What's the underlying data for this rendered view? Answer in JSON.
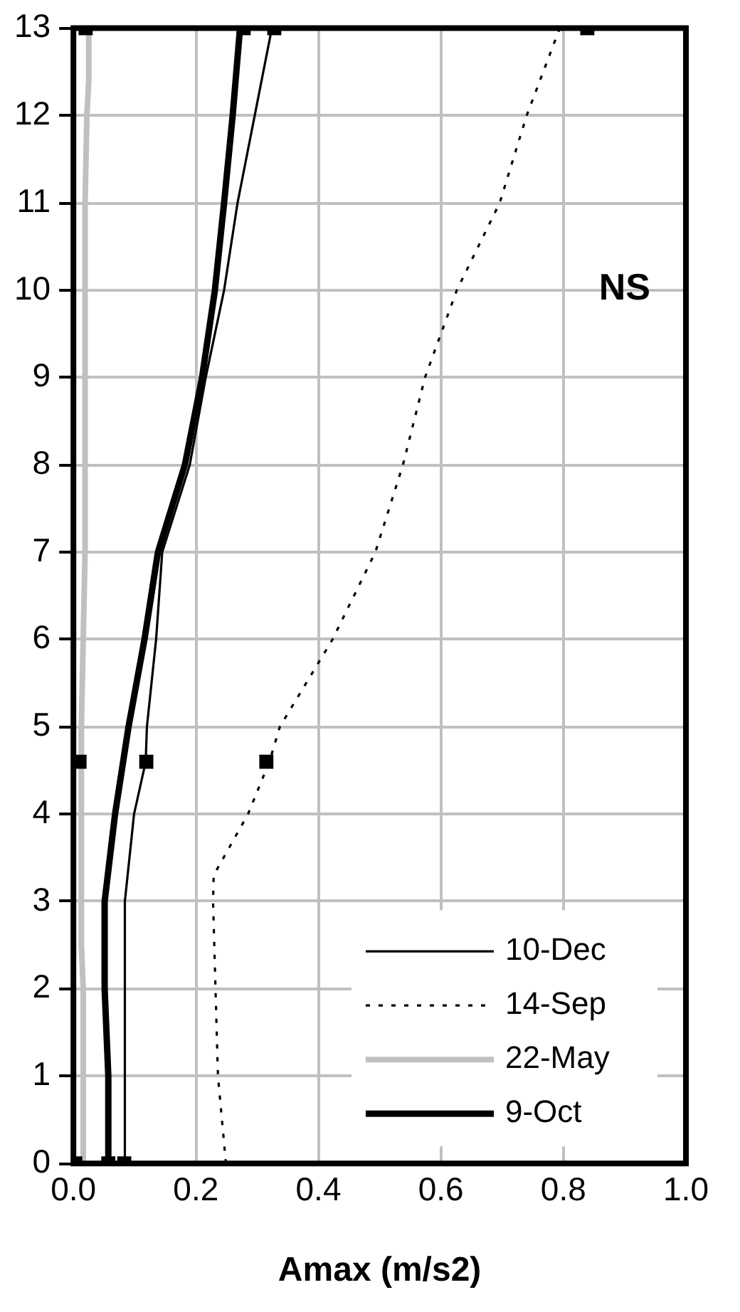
{
  "chart_data": {
    "type": "line",
    "xlabel": "Amax (m/s2)",
    "xlim": [
      0,
      1
    ],
    "xticks": [
      {
        "value": 0,
        "label": "0.0"
      },
      0.2,
      0.4,
      0.6,
      0.8,
      {
        "value": 1,
        "label": "1.0"
      }
    ],
    "ylim": [
      0,
      13
    ],
    "yticks": [
      0,
      1,
      2,
      3,
      4,
      5,
      6,
      7,
      8,
      9,
      10,
      11,
      12,
      13
    ],
    "grid": true,
    "legend": "bottom right",
    "marker": "none",
    "annotations": [
      "NS"
    ],
    "series": [
      {
        "name": "10-Dec",
        "color": "#000000",
        "line_style": "solid",
        "x": [
          0.084,
          0.084,
          0.099,
          0.118,
          0.12,
          0.135,
          0.145,
          0.19,
          0.216,
          0.246,
          0.268,
          0.296,
          0.324
        ],
        "values": [
          0,
          3,
          4,
          4.6,
          5,
          6,
          7,
          8,
          9,
          10,
          11,
          12,
          13
        ]
      },
      {
        "name": "14-Sep",
        "color": "#000000",
        "line_style": "dotted",
        "x": [
          0.249,
          0.236,
          0.232,
          0.228,
          0.229,
          0.285,
          0.32,
          0.337,
          0.423,
          0.493,
          0.538,
          0.574,
          0.626,
          0.696,
          0.74,
          0.794
        ],
        "values": [
          0,
          1,
          2,
          3,
          3.3,
          4,
          4.6,
          5,
          6,
          7,
          8,
          9,
          10,
          11,
          12,
          13
        ]
      },
      {
        "name": "22-May",
        "color": "#c0c0c0",
        "line_style": "solid",
        "x": [
          0.016,
          0.016,
          0.013,
          0.013,
          0.016,
          0.019,
          0.019,
          0.022,
          0.025,
          0.025
        ],
        "values": [
          0,
          2,
          2.5,
          5,
          6,
          7,
          11,
          12,
          12.4,
          13
        ]
      },
      {
        "name": "9-Oct",
        "color": "#000000",
        "line_style": "solid",
        "x": [
          0.057,
          0.057,
          0.051,
          0.051,
          0.068,
          0.09,
          0.116,
          0.138,
          0.182,
          0.21,
          0.231,
          0.246,
          0.26,
          0.272
        ],
        "values": [
          0,
          1,
          2,
          3,
          4,
          5,
          6,
          7,
          8,
          9,
          10,
          11,
          12,
          13
        ]
      },
      {
        "type": "scatter",
        "marker": "square",
        "color": "#000000",
        "x": [
          0.003,
          0.057,
          0.083,
          0.01,
          0.119,
          0.315,
          0.02,
          0.278,
          0.328,
          0.839
        ],
        "values": [
          0,
          0,
          0,
          4.6,
          4.6,
          4.6,
          13,
          13,
          13,
          13
        ]
      }
    ]
  }
}
